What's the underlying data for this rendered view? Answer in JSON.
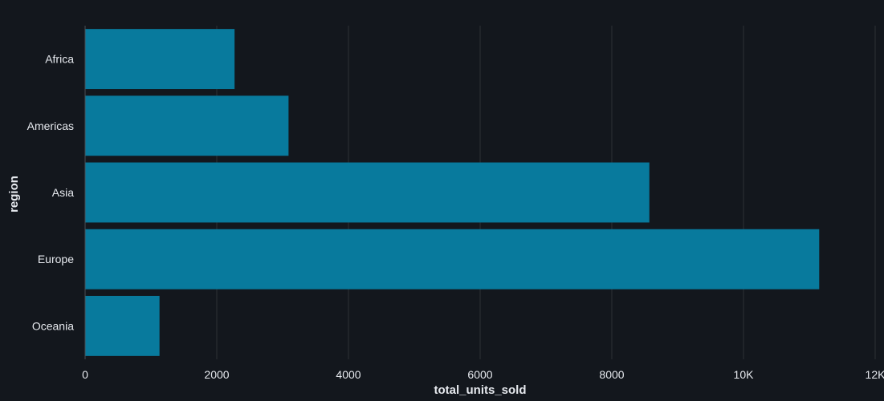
{
  "chart_data": {
    "type": "bar",
    "orientation": "horizontal",
    "categories": [
      "Africa",
      "Americas",
      "Asia",
      "Europe",
      "Oceania"
    ],
    "values": [
      2270,
      3090,
      8570,
      11150,
      1130
    ],
    "xlabel": "total_units_sold",
    "ylabel": "region",
    "xlim": [
      0,
      12000
    ],
    "x_ticks": [
      0,
      2000,
      4000,
      6000,
      8000,
      10000,
      12000
    ],
    "x_tick_labels": [
      "0",
      "2000",
      "4000",
      "6000",
      "8000",
      "10K",
      "12K"
    ],
    "grid": "vertical",
    "legend": "none",
    "colors": {
      "background": "#13171d",
      "bar": "#087a9d",
      "grid": "#2c3035",
      "text": "#e6e9ee",
      "axis_line": "#4a4f55"
    }
  }
}
